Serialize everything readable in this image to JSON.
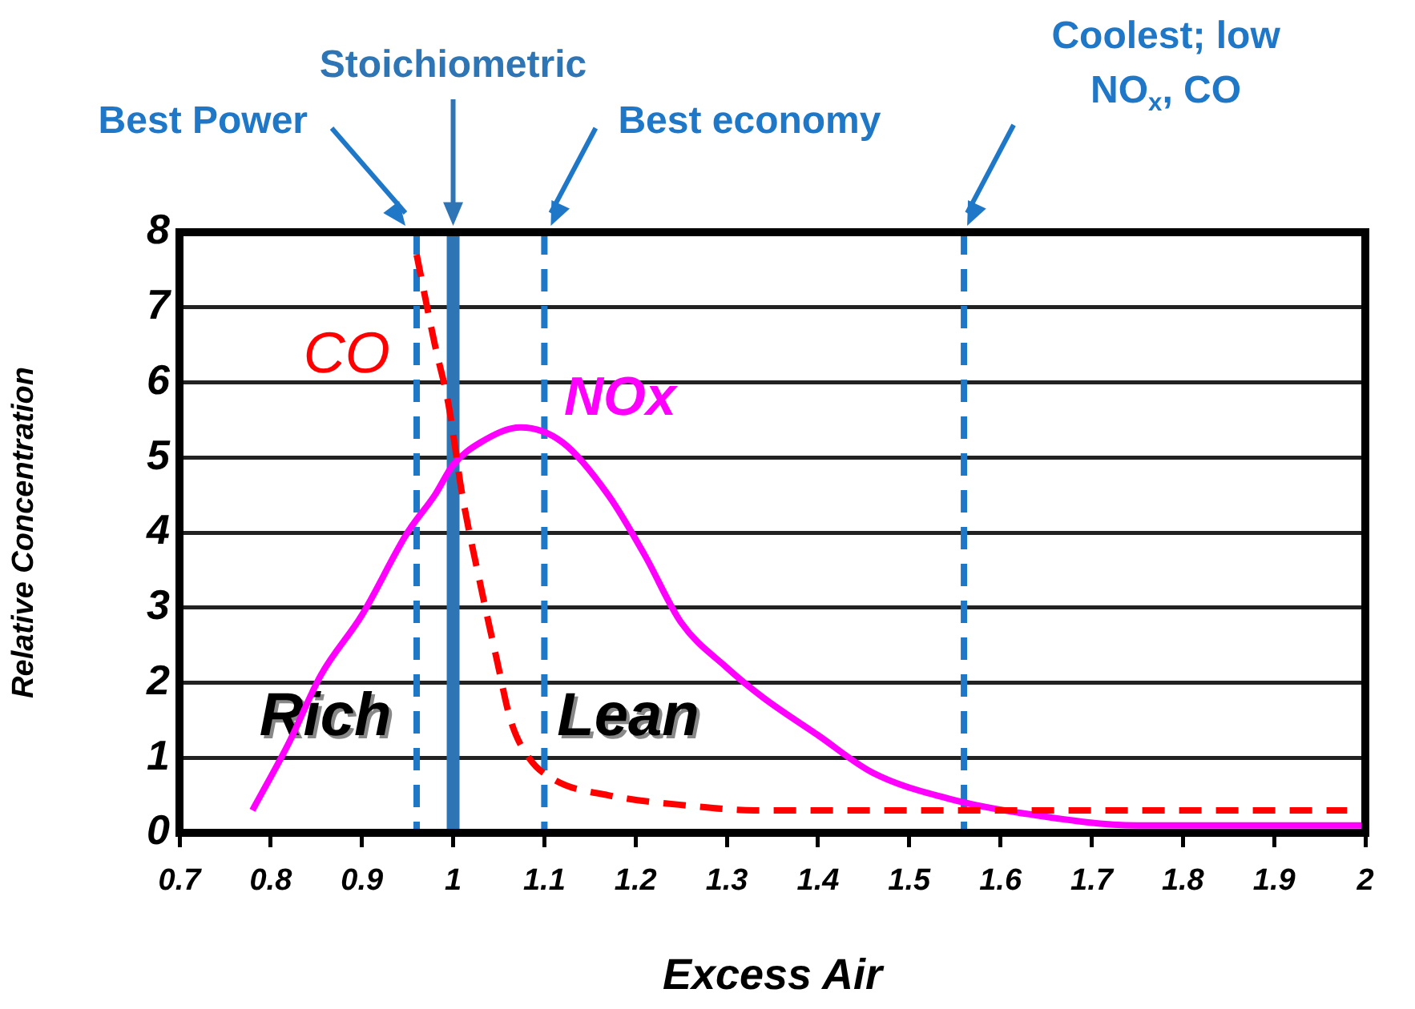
{
  "chart_data": {
    "type": "line",
    "xlabel": "Excess Air",
    "ylabel": "Relative Concentration",
    "xlim": [
      0.7,
      2
    ],
    "xticks": [
      0.7,
      0.8,
      0.9,
      1,
      1.1,
      1.2,
      1.3,
      1.4,
      1.5,
      1.6,
      1.7,
      1.8,
      1.9,
      2
    ],
    "ylim": [
      0,
      8
    ],
    "yticks": [
      0,
      1,
      2,
      3,
      4,
      5,
      6,
      7,
      8
    ],
    "grid": "y",
    "legend": false,
    "marker": "none",
    "series": [
      {
        "name": "CO",
        "color": "#ff0000",
        "line_style": "dashed",
        "x": [
          0.96,
          0.98,
          0.995,
          1.01,
          1.03,
          1.048,
          1.063,
          1.083,
          1.112,
          1.17,
          1.26,
          1.33,
          1.5,
          1.98
        ],
        "values": [
          7.7,
          6.5,
          5.7,
          4.5,
          3.3,
          2.3,
          1.5,
          1.0,
          0.7,
          0.5,
          0.36,
          0.3,
          0.3,
          0.3
        ]
      },
      {
        "name": "NOx",
        "color": "#ff00ff",
        "line_style": "solid",
        "x": [
          0.78,
          0.82,
          0.855,
          0.9,
          0.95,
          0.98,
          1.0,
          1.03,
          1.074,
          1.12,
          1.17,
          1.21,
          1.25,
          1.3,
          1.34,
          1.4,
          1.46,
          1.545,
          1.63,
          1.75,
          1.86,
          2.0
        ],
        "values": [
          0.3,
          1.2,
          2.1,
          2.9,
          4.0,
          4.5,
          4.9,
          5.2,
          5.4,
          5.2,
          4.5,
          3.7,
          2.8,
          2.2,
          1.8,
          1.3,
          0.8,
          0.45,
          0.25,
          0.1,
          0.1,
          0.1
        ]
      }
    ],
    "ref_lines": [
      {
        "axis": "x",
        "value": 0.96,
        "label": "Best Power",
        "color": "#1f77c8",
        "line_style": "dashed"
      },
      {
        "axis": "x",
        "value": 1,
        "label": "Stoichiometric",
        "color": "#2e75b6",
        "line_style": "solid"
      },
      {
        "axis": "x",
        "value": 1.1,
        "label": "Best economy",
        "color": "#1f77c8",
        "line_style": "dashed"
      },
      {
        "axis": "x",
        "value": 1.56,
        "label": "Coolest; low NO$_{x}$, CO",
        "color": "#1f77c8",
        "line_style": "dashed"
      }
    ],
    "annotations": [
      "Rich",
      "Lean"
    ]
  }
}
